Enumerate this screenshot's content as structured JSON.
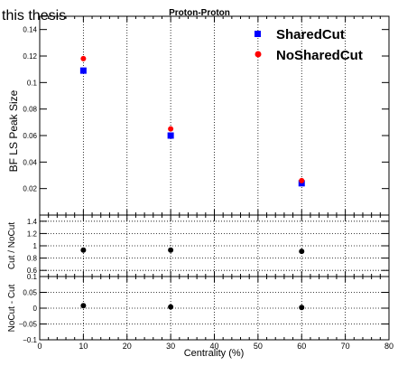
{
  "watermark": "this thesis",
  "colors": {
    "shared": "#0000ff",
    "noshared": "#ff0000",
    "ratio": "#000000",
    "grid": "#000000"
  },
  "chart_data": [
    {
      "type": "scatter",
      "title": "Proton-Proton",
      "xlabel": "",
      "ylabel": "BF LS Peak Size",
      "xlim": [
        0,
        80
      ],
      "ylim": [
        0.0,
        0.15
      ],
      "yticks": [
        0.02,
        0.04,
        0.06,
        0.08,
        0.1,
        0.12,
        0.14
      ],
      "ytick_labels": [
        "0.02",
        "0.04",
        "0.06",
        "0.08",
        "0.1",
        "0.12",
        "0.14"
      ],
      "grid": "vertical dotted",
      "legend_position": "top-right",
      "series": [
        {
          "name": "SharedCut",
          "marker": "square",
          "color": "#0000ff",
          "x": [
            10,
            30,
            60
          ],
          "y": [
            0.109,
            0.06,
            0.024
          ]
        },
        {
          "name": "NoSharedCut",
          "marker": "circle",
          "color": "#ff0000",
          "x": [
            10,
            30,
            60
          ],
          "y": [
            0.118,
            0.065,
            0.026
          ]
        }
      ]
    },
    {
      "type": "scatter",
      "title": "",
      "ylabel": "Cut / NoCut",
      "xlim": [
        0,
        80
      ],
      "ylim": [
        0.5,
        1.5
      ],
      "yticks": [
        0.6,
        0.8,
        1.0,
        1.2,
        1.4
      ],
      "ytick_labels": [
        "0.6",
        "0.8",
        "1",
        "1.2",
        "1.4"
      ],
      "grid": "dotted",
      "series": [
        {
          "marker": "circle",
          "color": "#000000",
          "x": [
            10,
            30,
            60
          ],
          "y": [
            0.93,
            0.93,
            0.91
          ]
        }
      ]
    },
    {
      "type": "scatter",
      "title": "",
      "xlabel": "Centrality (%)",
      "ylabel": "NoCut - Cut",
      "xlim": [
        0,
        80
      ],
      "ylim": [
        -0.1,
        0.1
      ],
      "xticks": [
        0,
        10,
        20,
        30,
        40,
        50,
        60,
        70,
        80
      ],
      "xtick_labels": [
        "0",
        "10",
        "20",
        "30",
        "40",
        "50",
        "60",
        "70",
        "80"
      ],
      "yticks": [
        -0.1,
        -0.05,
        0,
        0.05,
        0.1
      ],
      "ytick_labels": [
        "−0.1",
        "−0.05",
        "0",
        "0.05",
        "0.1"
      ],
      "grid": "dotted",
      "series": [
        {
          "marker": "circle",
          "color": "#000000",
          "x": [
            10,
            30,
            60
          ],
          "y": [
            0.008,
            0.004,
            0.002
          ]
        }
      ]
    }
  ]
}
